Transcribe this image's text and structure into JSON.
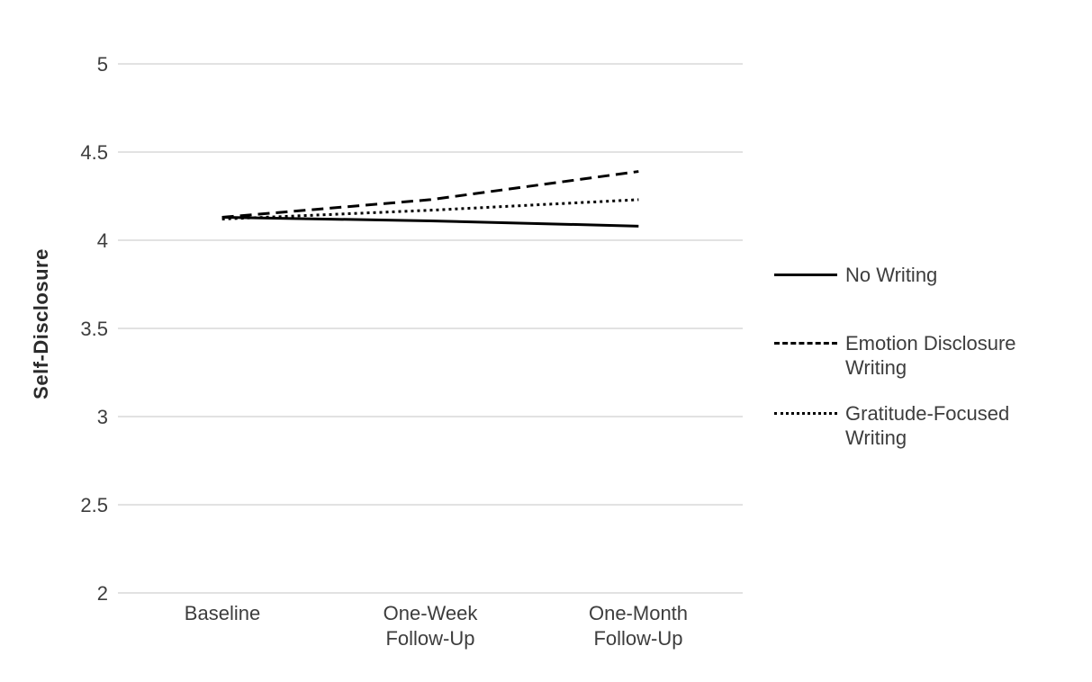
{
  "chart_data": {
    "type": "line",
    "title": "",
    "xlabel": "",
    "ylabel": "Self-Disclosure",
    "categories": [
      "Baseline",
      "One-Week Follow-Up",
      "One-Month Follow-Up"
    ],
    "series": [
      {
        "name": "No Writing",
        "line_style": "solid",
        "values": [
          4.13,
          4.11,
          4.08
        ]
      },
      {
        "name": "Emotion Disclosure Writing",
        "line_style": "dashed",
        "values": [
          4.13,
          4.23,
          4.39
        ]
      },
      {
        "name": "Gratitude-Focused Writing",
        "line_style": "dotted",
        "values": [
          4.12,
          4.17,
          4.23
        ]
      }
    ],
    "y_axis": {
      "min": 2,
      "max": 5,
      "step": 0.5,
      "tick_labels": [
        "2",
        "2.5",
        "3",
        "3.5",
        "4",
        "4.5",
        "5"
      ]
    },
    "grid": true,
    "legend_position": "right",
    "colors": {
      "line": "#000000",
      "gridline": "#d9d9d9",
      "text": "#3d3d3d",
      "background": "#ffffff"
    }
  }
}
